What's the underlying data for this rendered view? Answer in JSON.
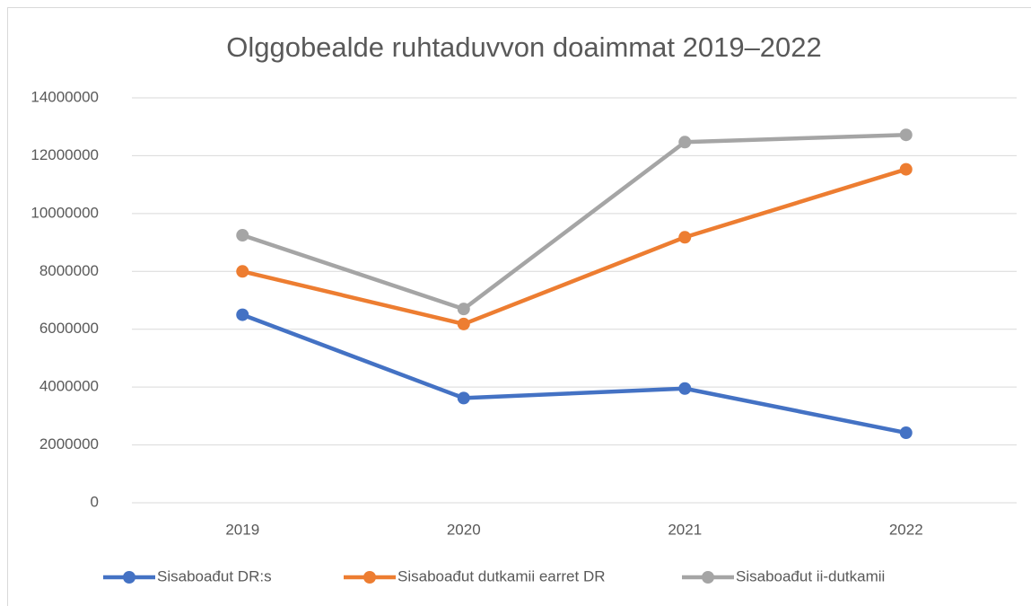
{
  "chart_data": {
    "type": "line",
    "title": "Olggobealde ruhtaduvvon doaimmat 2019–2022",
    "categories": [
      "2019",
      "2020",
      "2021",
      "2022"
    ],
    "series": [
      {
        "name": "Sisaboađut DR:s",
        "color": "#4472c4",
        "values": [
          6500000,
          3620000,
          3950000,
          2420000
        ]
      },
      {
        "name": "Sisaboađut dutkamii earret DR",
        "color": "#ed7d31",
        "values": [
          8000000,
          6180000,
          9180000,
          11530000
        ]
      },
      {
        "name": "Sisaboađut ii-dutkamii",
        "color": "#a5a5a5",
        "values": [
          9250000,
          6700000,
          12470000,
          12720000
        ]
      }
    ],
    "ylim": [
      0,
      14000000
    ],
    "yticks": [
      0,
      2000000,
      4000000,
      6000000,
      8000000,
      10000000,
      12000000,
      14000000
    ],
    "grid": true,
    "legend": "bottom"
  }
}
